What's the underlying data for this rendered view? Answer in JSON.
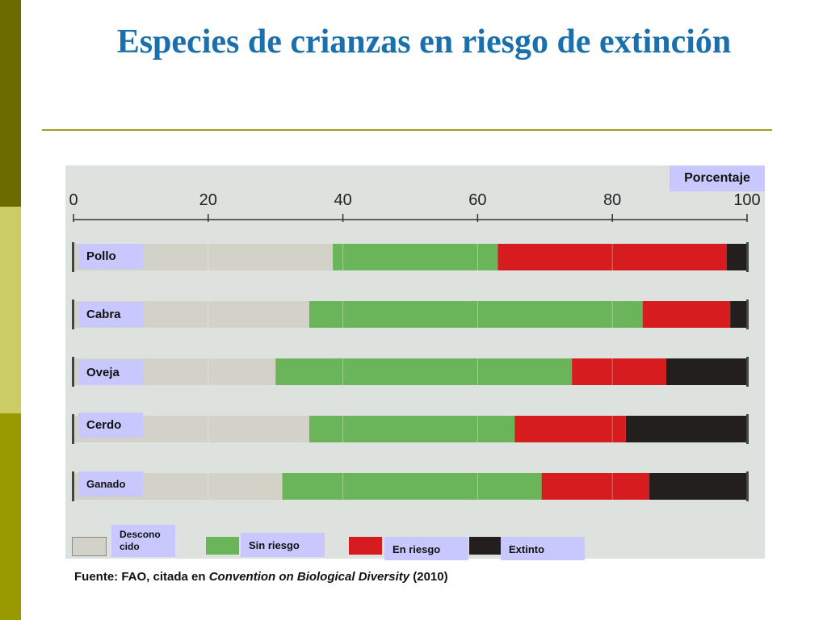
{
  "slide": {
    "title": "Especies de crianzas en riesgo de extinción",
    "unit_label": "Porcentaje",
    "source_prefix": "Fuente: FAO, citada en ",
    "source_italic": "Convention on Biological Diversity",
    "source_suffix": "  (2010)"
  },
  "colors": {
    "title": "#1a6fad",
    "desconocido": "#d3d2c8",
    "sin_riesgo": "#6ab55a",
    "en_riesgo": "#d71c1f",
    "extinto": "#231f1f",
    "label_badge": "#c8c8ff"
  },
  "chart_data": {
    "type": "bar",
    "orientation": "horizontal",
    "stacked": true,
    "xlim": [
      0,
      100
    ],
    "xticks": [
      "0",
      "20",
      "40",
      "60",
      "80",
      "100"
    ],
    "categories": [
      "Pollo",
      "Cabra",
      "Oveja",
      "Cerdo",
      "Ganado"
    ],
    "series": [
      {
        "name": "Descono cido",
        "color": "#d3d2c8",
        "values": [
          38.5,
          35,
          30,
          35,
          31
        ]
      },
      {
        "name": "Sin riesgo",
        "color": "#6ab55a",
        "values": [
          24.5,
          49.5,
          44,
          30.5,
          38.5
        ]
      },
      {
        "name": "En riesgo",
        "color": "#d71c1f",
        "values": [
          34,
          13,
          14,
          16.5,
          16
        ]
      },
      {
        "name": "Extinto",
        "color": "#231f1f",
        "values": [
          3,
          2.5,
          12,
          18,
          14.5
        ]
      }
    ],
    "legend": [
      "Descono cido",
      "Sin riesgo",
      "En riesgo",
      "Extinto"
    ],
    "legend_placement": "bottom"
  }
}
